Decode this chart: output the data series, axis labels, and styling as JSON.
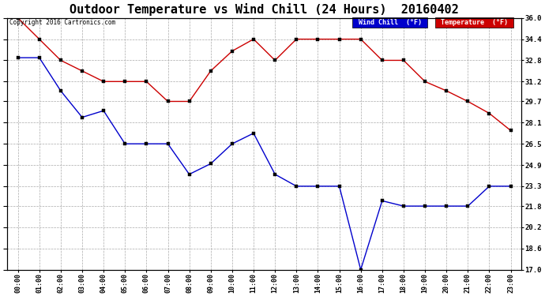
{
  "title": "Outdoor Temperature vs Wind Chill (24 Hours)  20160402",
  "copyright": "Copyright 2016 Cartronics.com",
  "ylabel_right_ticks": [
    17.0,
    18.6,
    20.2,
    21.8,
    23.3,
    24.9,
    26.5,
    28.1,
    29.7,
    31.2,
    32.8,
    34.4,
    36.0
  ],
  "hours": [
    "00:00",
    "01:00",
    "02:00",
    "03:00",
    "04:00",
    "05:00",
    "06:00",
    "07:00",
    "08:00",
    "09:00",
    "10:00",
    "11:00",
    "12:00",
    "13:00",
    "14:00",
    "15:00",
    "16:00",
    "17:00",
    "18:00",
    "19:00",
    "20:00",
    "21:00",
    "22:00",
    "23:00"
  ],
  "temperature": [
    36.0,
    34.4,
    32.8,
    32.0,
    31.2,
    31.2,
    31.2,
    29.7,
    29.7,
    32.0,
    33.5,
    34.4,
    32.8,
    34.4,
    34.4,
    34.4,
    34.4,
    32.8,
    32.8,
    31.2,
    30.5,
    29.7,
    28.8,
    27.5
  ],
  "wind_chill": [
    33.0,
    33.0,
    30.5,
    28.5,
    29.0,
    26.5,
    26.5,
    26.5,
    24.2,
    25.0,
    26.5,
    27.3,
    24.2,
    23.3,
    23.3,
    23.3,
    17.0,
    22.2,
    21.8,
    21.8,
    21.8,
    21.8,
    23.3,
    23.3
  ],
  "temp_color": "#cc0000",
  "wind_chill_color": "#0000cc",
  "bg_color": "#ffffff",
  "grid_color": "#aaaaaa",
  "title_fontsize": 11,
  "legend_wind_chill_bg": "#0000cc",
  "legend_temp_bg": "#cc0000",
  "ylim_min": 17.0,
  "ylim_max": 36.0,
  "figwidth": 6.9,
  "figheight": 3.75,
  "dpi": 100
}
